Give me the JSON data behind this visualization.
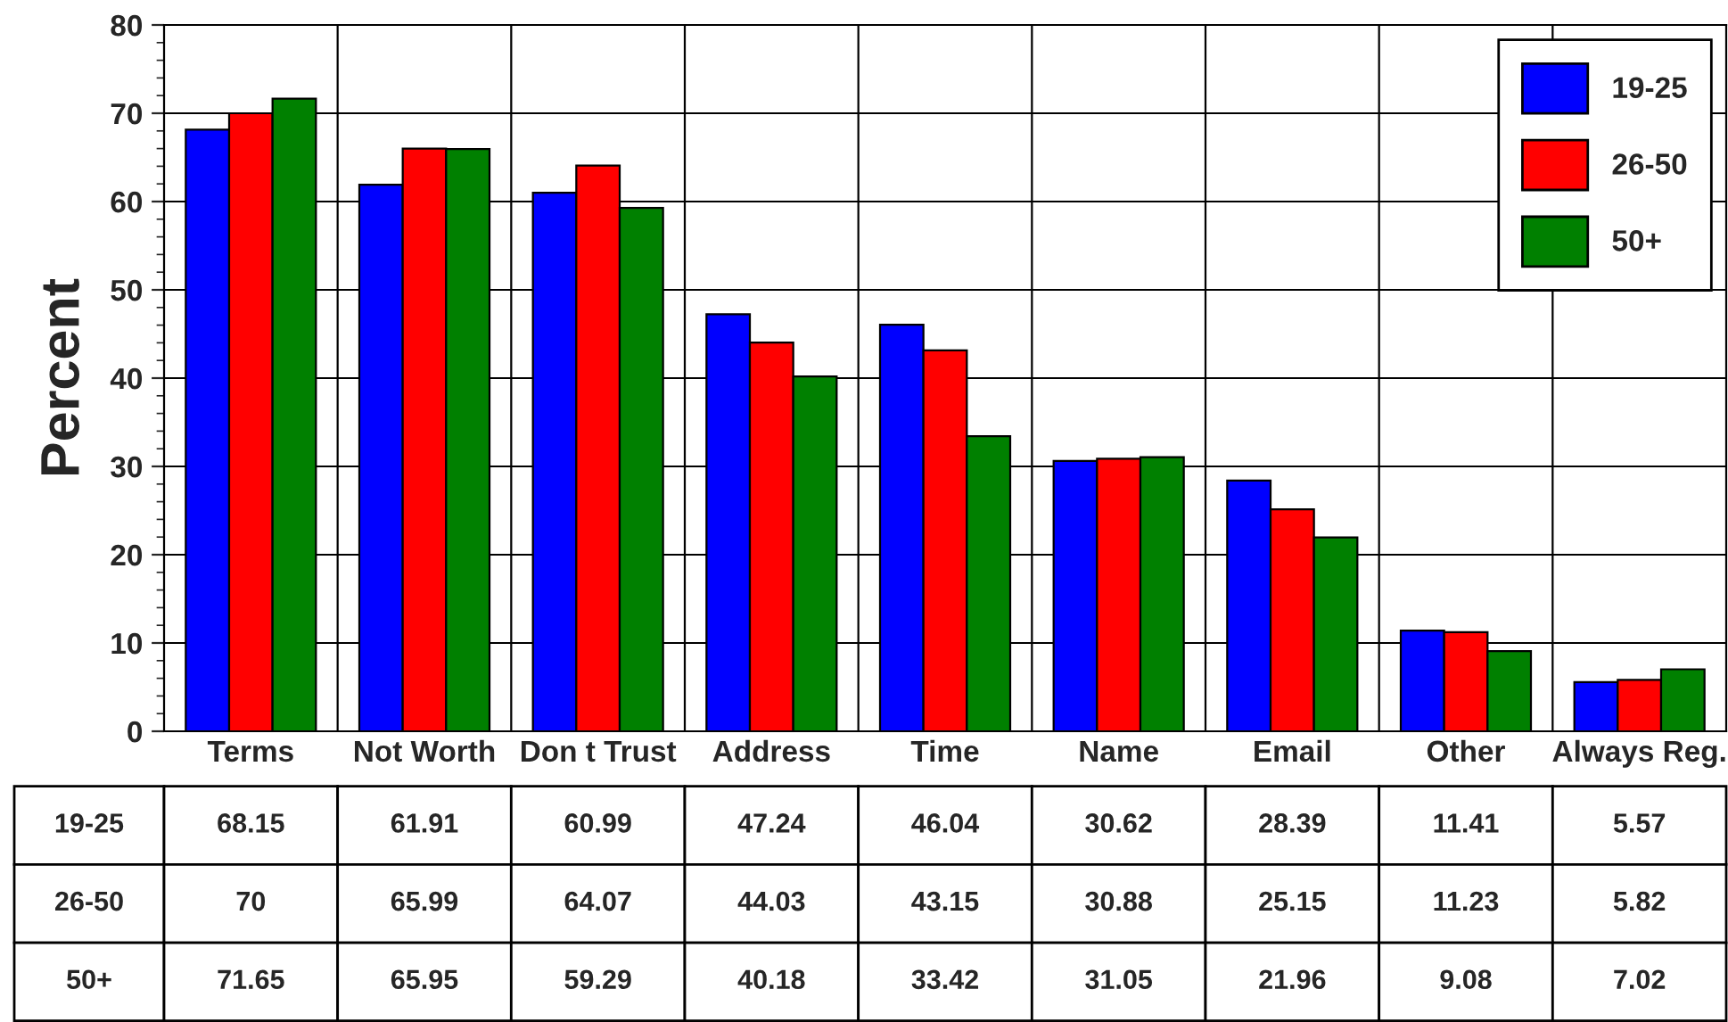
{
  "chart_data": {
    "type": "bar",
    "ylabel": "Percent",
    "categories": [
      "Terms",
      "Not Worth",
      "Don t Trust",
      "Address",
      "Time",
      "Name",
      "Email",
      "Other",
      "Always Reg."
    ],
    "series": [
      {
        "name": "19-25",
        "color": "#0000ff",
        "values": [
          68.15,
          61.91,
          60.99,
          47.24,
          46.04,
          30.62,
          28.39,
          11.41,
          5.57
        ]
      },
      {
        "name": "26-50",
        "color": "#ff0000",
        "values": [
          70,
          65.99,
          64.07,
          44.03,
          43.15,
          30.88,
          25.15,
          11.23,
          5.82
        ]
      },
      {
        "name": "50+",
        "color": "#008000",
        "values": [
          71.65,
          65.95,
          59.29,
          40.18,
          33.42,
          31.05,
          21.96,
          9.08,
          7.02
        ]
      }
    ],
    "ylim": [
      0,
      80
    ],
    "yticks": [
      0,
      10,
      20,
      30,
      40,
      50,
      60,
      70,
      80
    ],
    "grid": true,
    "legend": "top right",
    "data_labels": true
  }
}
